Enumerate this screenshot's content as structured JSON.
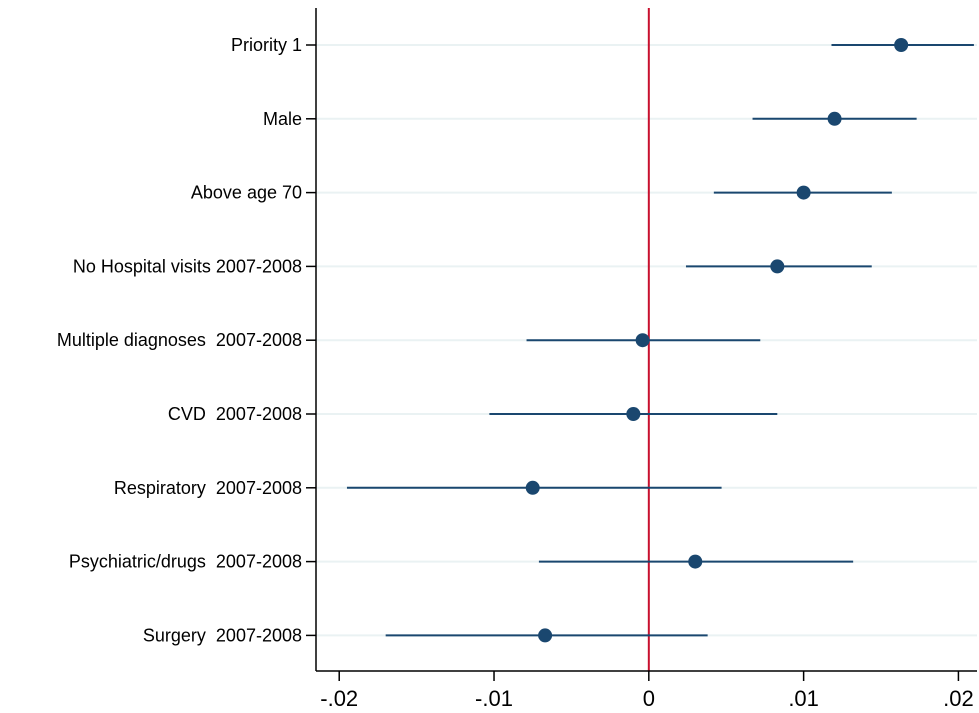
{
  "chart_data": {
    "type": "scatter",
    "subtype": "coefficient-plot",
    "title": "",
    "xlabel": "",
    "ylabel": "",
    "xlim": [
      -0.0215,
      0.0212
    ],
    "x_ticks": [
      {
        "value": -0.02,
        "label": "-.02"
      },
      {
        "value": -0.01,
        "label": "-.01"
      },
      {
        "value": 0,
        "label": "0"
      },
      {
        "value": 0.01,
        "label": ".01"
      },
      {
        "value": 0.02,
        "label": ".02"
      }
    ],
    "reference_line": {
      "x": 0,
      "color": "#c8102e"
    },
    "grid": "horizontal",
    "colors": {
      "marker": "#1a476f",
      "interval": "#1a476f",
      "grid": "#eaf2f3",
      "axis": "#000000"
    },
    "categories": [
      "Priority 1",
      "Male",
      "Above age 70",
      "No Hospital visits 2007-2008",
      "Multiple diagnoses  2007-2008",
      "CVD  2007-2008",
      "Respiratory  2007-2008",
      "Psychiatric/drugs  2007-2008",
      "Surgery  2007-2008"
    ],
    "estimates": [
      0.0163,
      0.012,
      0.01,
      0.0083,
      -0.0004,
      -0.001,
      -0.0075,
      0.003,
      -0.0067
    ],
    "ci_low": [
      0.0118,
      0.0067,
      0.0042,
      0.0024,
      -0.0079,
      -0.0103,
      -0.0195,
      -0.0071,
      -0.017
    ],
    "ci_high": [
      0.021,
      0.0173,
      0.0157,
      0.0144,
      0.0072,
      0.0083,
      0.0047,
      0.0132,
      0.0038
    ]
  }
}
